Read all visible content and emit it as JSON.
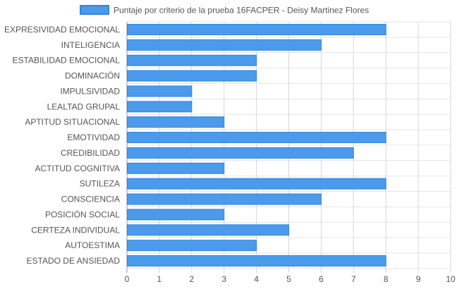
{
  "chart_data": {
    "type": "bar",
    "orientation": "horizontal",
    "title": "",
    "xlabel": "",
    "ylabel": "",
    "xlim": [
      0,
      10
    ],
    "x_ticks": [
      0,
      1,
      2,
      3,
      4,
      5,
      6,
      7,
      8,
      9,
      10
    ],
    "grid": true,
    "legend_position": "top",
    "categories": [
      "EXPRESIVIDAD EMOCIONAL",
      "INTELIGENCIA",
      "ESTABILIDAD EMOCIONAL",
      "DOMINACIÓN",
      "IMPULSIVIDAD",
      "LEALTAD GRUPAL",
      "APTITUD SITUACIONAL",
      "EMOTIVIDAD",
      "CREDIBILIDAD",
      "ACTITUD COGNITIVA",
      "SUTILEZA",
      "CONSCIENCIA",
      "POSICIÓN SOCIAL",
      "CERTEZA INDIVIDUAL",
      "AUTOESTIMA",
      "ESTADO DE ANSIEDAD"
    ],
    "series": [
      {
        "name": "Puntaje por criterio de la prueba 16FACPER - Deisy Martinez Flores",
        "color": "#4b9aeb",
        "border_color": "#2f86e0",
        "values": [
          8,
          6,
          4,
          4,
          2,
          2,
          3,
          8,
          7,
          3,
          8,
          6,
          3,
          5,
          4,
          8
        ]
      }
    ]
  },
  "colors": {
    "grid": "#e5e5e5",
    "axis": "#9a9a9a",
    "text": "#555555"
  }
}
